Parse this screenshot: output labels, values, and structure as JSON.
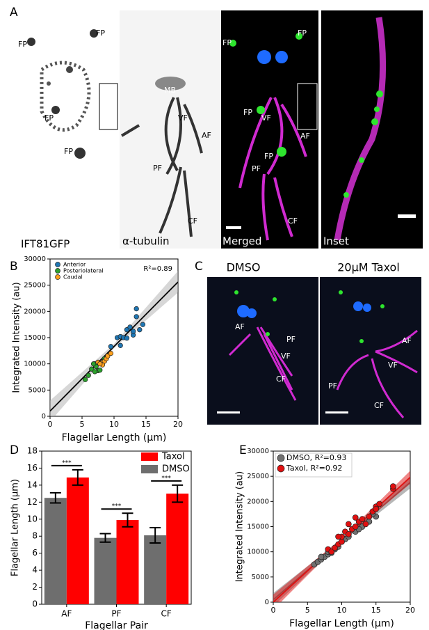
{
  "panel_labels": [
    "A",
    "B",
    "C",
    "D",
    "E"
  ],
  "panel_a": {
    "images": [
      {
        "label": "IFT81GFP",
        "annotations": [
          "FP",
          "FP",
          "FP",
          "FP"
        ]
      },
      {
        "label": "α-tubulin",
        "annotations": [
          "MB",
          "VF",
          "AF",
          "PF",
          "CF"
        ]
      },
      {
        "label": "Merged",
        "annotations": [
          "FP",
          "FP",
          "FP",
          "VF",
          "FP",
          "AF",
          "PF",
          "CF"
        ]
      },
      {
        "label": "Inset"
      }
    ]
  },
  "panel_c": {
    "images": [
      {
        "label": "DMSO",
        "annotations": [
          "AF",
          "VF",
          "PF",
          "CF"
        ]
      },
      {
        "label": "20μM Taxol",
        "annotations": [
          "AF",
          "VF",
          "PF",
          "CF"
        ]
      }
    ]
  },
  "chart_data": [
    {
      "type": "scatter",
      "x_label": "Flagellar Length (μm)",
      "y_label": "Integrated Intensity (au)",
      "annotation": "R²=0.89",
      "xlim": [
        0,
        20
      ],
      "xticks": [
        0,
        5,
        10,
        15,
        20
      ],
      "ylim": [
        0,
        30000
      ],
      "yticks": [
        0,
        5000,
        10000,
        15000,
        20000,
        25000,
        30000
      ],
      "legend": "upper left",
      "series": [
        {
          "name": "Anterior",
          "color": "#1f77b4",
          "x": [
            10.5,
            11,
            11.5,
            12,
            12,
            12.5,
            13,
            13,
            13.5,
            13.5,
            14,
            14.5,
            11,
            9.5
          ],
          "values": [
            15000,
            15200,
            15000,
            14900,
            16500,
            17000,
            15500,
            16200,
            20500,
            19000,
            16500,
            17500,
            13500,
            13300
          ]
        },
        {
          "name": "Posteriolateral",
          "color": "#2ca02c",
          "x": [
            5.5,
            6,
            6.5,
            7,
            7.2,
            7.5,
            7.8,
            8,
            8.5,
            6.8,
            7
          ],
          "values": [
            7000,
            7800,
            9000,
            10000,
            9500,
            8700,
            8800,
            10200,
            11000,
            10000,
            8500
          ]
        },
        {
          "name": "Caudal",
          "color": "#ff9f1c",
          "x": [
            7.5,
            8,
            8.5,
            8.8,
            9,
            9.5,
            8.2,
            7.8
          ],
          "values": [
            10300,
            10200,
            10500,
            11000,
            11500,
            12000,
            9800,
            10000
          ]
        }
      ],
      "fit": {
        "color": "#000000",
        "x": [
          0,
          20
        ],
        "values": [
          1000,
          25600
        ]
      },
      "band": {
        "color": "#b0b0b0",
        "x": [
          0,
          10,
          20
        ],
        "lower": [
          -1000,
          13000,
          23600
        ],
        "upper": [
          3000,
          13800,
          27700
        ]
      }
    },
    {
      "type": "bar",
      "x_label": "Flagellar Pair",
      "y_label": "Flagellar Length (μm)",
      "categories": [
        "AF",
        "PF",
        "CF"
      ],
      "ylim": [
        0,
        18
      ],
      "yticks": [
        0,
        2,
        4,
        6,
        8,
        10,
        12,
        14,
        16,
        18
      ],
      "legend": "upper right",
      "series": [
        {
          "name": "DMSO",
          "color": "#6e6e6e",
          "values": [
            12.5,
            7.8,
            8.1
          ],
          "errors": [
            0.6,
            0.5,
            0.9
          ]
        },
        {
          "name": "Taxol",
          "color": "#ff0000",
          "values": [
            14.9,
            9.9,
            13.0
          ],
          "errors": [
            0.9,
            0.8,
            1.0
          ]
        }
      ],
      "significance": [
        "***",
        "***",
        "***"
      ]
    },
    {
      "type": "scatter",
      "x_label": "Flagellar Length (μm)",
      "y_label": "Integrated Intensity (au)",
      "xlim": [
        0,
        20
      ],
      "xticks": [
        0,
        5,
        10,
        15,
        20
      ],
      "ylim": [
        0,
        30000
      ],
      "yticks": [
        0,
        5000,
        10000,
        15000,
        20000,
        25000,
        30000
      ],
      "legend": "upper left",
      "series": [
        {
          "name": "DMSO, R²=0.93",
          "color": "#707070",
          "x": [
            6,
            6.5,
            7,
            7.5,
            8,
            8,
            8.5,
            9,
            9.5,
            10,
            10.5,
            11,
            12,
            13,
            14,
            15,
            14.5,
            7,
            12.5
          ],
          "values": [
            7500,
            8000,
            8500,
            9000,
            9500,
            10000,
            9800,
            10500,
            11000,
            12000,
            12500,
            13000,
            14000,
            15000,
            16000,
            17000,
            17500,
            9000,
            14500
          ],
          "fit": {
            "x": [
              0,
              20
            ],
            "values": [
              500,
              23800
            ]
          },
          "band": {
            "x": [
              0,
              10,
              20
            ],
            "lower": [
              -800,
              11900,
              22600
            ],
            "upper": [
              1800,
              12500,
              25000
            ]
          }
        },
        {
          "name": "Taxol, R²=0.92",
          "color": "#e01010",
          "x": [
            8,
            8.5,
            9,
            9.5,
            10,
            10,
            10.5,
            11,
            11.5,
            12,
            12.5,
            13,
            13.5,
            14,
            14.5,
            15,
            15.5,
            15,
            17.5,
            17.5,
            9.5,
            11,
            12
          ],
          "values": [
            10500,
            10000,
            10800,
            11500,
            12000,
            13000,
            14000,
            13500,
            14500,
            15000,
            16000,
            16500,
            15500,
            17000,
            18000,
            19000,
            19500,
            18500,
            22500,
            23000,
            13000,
            15500,
            16800
          ],
          "fit": {
            "x": [
              0,
              20
            ],
            "values": [
              0,
              24800
            ]
          },
          "band": {
            "x": [
              0,
              10,
              20
            ],
            "lower": [
              -1500,
              12100,
              23500
            ],
            "upper": [
              1500,
              12700,
              26100
            ]
          }
        }
      ]
    }
  ]
}
